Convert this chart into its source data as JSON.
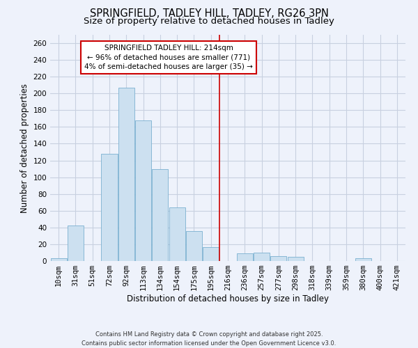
{
  "title": "SPRINGFIELD, TADLEY HILL, TADLEY, RG26 3PN",
  "subtitle": "Size of property relative to detached houses in Tadley",
  "xlabel": "Distribution of detached houses by size in Tadley",
  "ylabel": "Number of detached properties",
  "categories": [
    "10sqm",
    "31sqm",
    "51sqm",
    "72sqm",
    "92sqm",
    "113sqm",
    "134sqm",
    "154sqm",
    "175sqm",
    "195sqm",
    "216sqm",
    "236sqm",
    "257sqm",
    "277sqm",
    "298sqm",
    "318sqm",
    "339sqm",
    "359sqm",
    "380sqm",
    "400sqm",
    "421sqm"
  ],
  "values": [
    3,
    42,
    0,
    128,
    207,
    168,
    110,
    64,
    36,
    17,
    0,
    9,
    10,
    6,
    5,
    0,
    0,
    0,
    3,
    0,
    0
  ],
  "bar_color": "#cce0f0",
  "bar_edge_color": "#7ab0d0",
  "vline_x_index": 10,
  "vline_color": "#cc0000",
  "annotation_text": "SPRINGFIELD TADLEY HILL: 214sqm\n← 96% of detached houses are smaller (771)\n4% of semi-detached houses are larger (35) →",
  "annotation_box_color": "#ffffff",
  "annotation_box_edge": "#cc0000",
  "ylim": [
    0,
    270
  ],
  "yticks": [
    0,
    20,
    40,
    60,
    80,
    100,
    120,
    140,
    160,
    180,
    200,
    220,
    240,
    260
  ],
  "background_color": "#eef2fb",
  "grid_color": "#c8d0e0",
  "footer_line1": "Contains HM Land Registry data © Crown copyright and database right 2025.",
  "footer_line2": "Contains public sector information licensed under the Open Government Licence v3.0.",
  "title_fontsize": 10.5,
  "subtitle_fontsize": 9.5,
  "axis_label_fontsize": 8.5,
  "tick_fontsize": 7.5,
  "annotation_fontsize": 7.5
}
